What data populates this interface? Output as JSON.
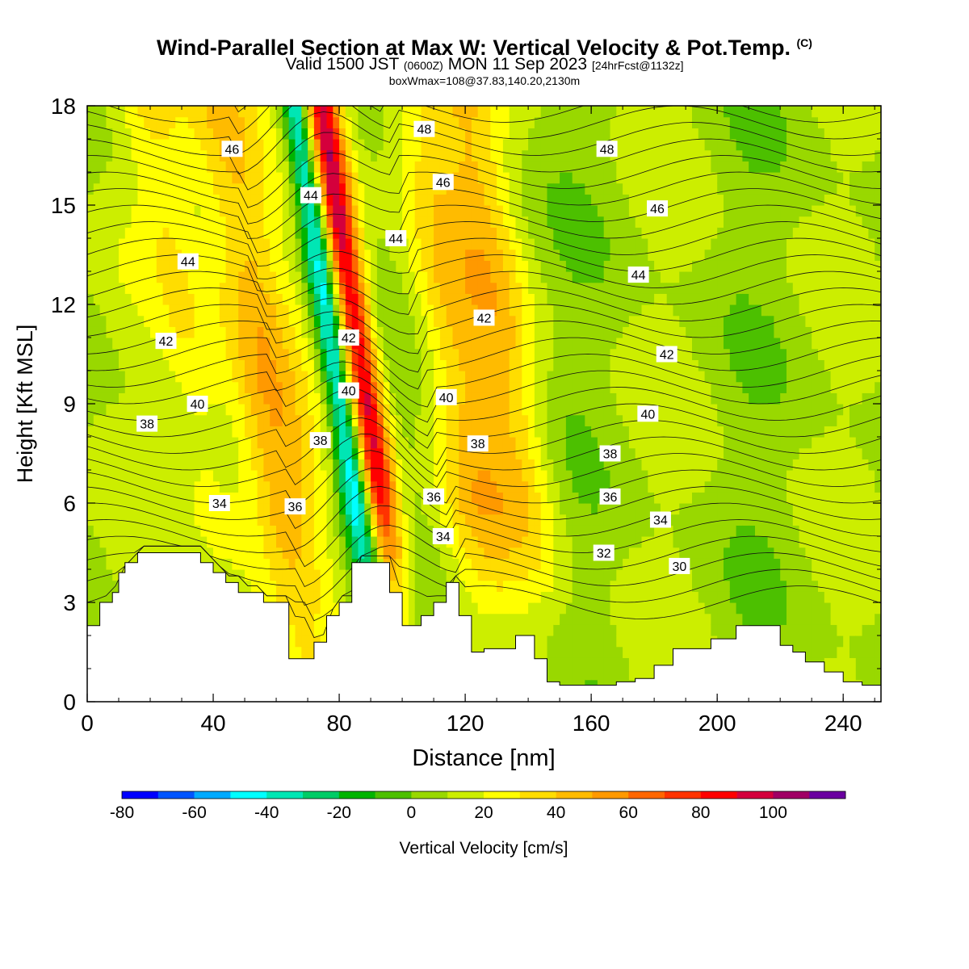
{
  "header": {
    "title": "Wind-Parallel Section at Max W: Vertical Velocity & Pot.Temp.",
    "title_tag": "(C)",
    "valid_prefix": "Valid 1500 JST",
    "valid_utc": "(0600Z)",
    "valid_date": "MON 11 Sep 2023",
    "forecast": "[24hrFcst@1132z]",
    "boxinfo": "boxWmax=108@37.83,140.20,2130m"
  },
  "chart_data": {
    "type": "heatmap",
    "xlabel": "Distance [nm]",
    "ylabel": "Height [Kft MSL]",
    "xlim": [
      0,
      252
    ],
    "ylim": [
      0,
      18
    ],
    "xticks": [
      0,
      40,
      80,
      120,
      160,
      200,
      240
    ],
    "yticks": [
      0,
      3,
      6,
      9,
      12,
      15,
      18
    ],
    "colorbar": {
      "label": "Vertical Velocity [cm/s]",
      "ticks": [
        -80,
        -60,
        -40,
        -20,
        0,
        20,
        40,
        60,
        80,
        100
      ],
      "bins": [
        -80,
        -70,
        -60,
        -50,
        -40,
        -30,
        -20,
        -10,
        0,
        10,
        20,
        30,
        40,
        50,
        60,
        70,
        80,
        90,
        100,
        110
      ],
      "colors": [
        "#0000ff",
        "#0055ff",
        "#00aaff",
        "#00ffff",
        "#00e6b4",
        "#00cc66",
        "#00b400",
        "#4cc000",
        "#99d800",
        "#ccee00",
        "#ffff00",
        "#ffdd00",
        "#ffbb00",
        "#ff9900",
        "#ff6600",
        "#ff3300",
        "#ff0000",
        "#d4003c",
        "#a00064",
        "#6a00a0"
      ]
    },
    "wind_bands": [
      {
        "x": 62,
        "w": 12,
        "w_cms": 40
      },
      {
        "x": 86,
        "w": 5,
        "w_cms": -70
      },
      {
        "x": 93,
        "w": 6,
        "w_cms": 90
      },
      {
        "x": 124,
        "w": 12,
        "w_cms": 30
      },
      {
        "x": 140,
        "w": 10,
        "w_cms": 25
      },
      {
        "x": 40,
        "w": 10,
        "w_cms": 20
      }
    ],
    "terrain": [
      [
        0,
        2.3
      ],
      [
        4,
        3.0
      ],
      [
        8,
        3.3
      ],
      [
        10,
        3.9
      ],
      [
        12,
        4.2
      ],
      [
        16,
        4.5
      ],
      [
        32,
        4.5
      ],
      [
        36,
        4.2
      ],
      [
        40,
        3.9
      ],
      [
        44,
        3.6
      ],
      [
        48,
        3.3
      ],
      [
        56,
        3.0
      ],
      [
        62,
        3.0
      ],
      [
        64,
        1.3
      ],
      [
        72,
        1.8
      ],
      [
        76,
        2.6
      ],
      [
        80,
        3.0
      ],
      [
        84,
        4.2
      ],
      [
        90,
        4.2
      ],
      [
        96,
        3.3
      ],
      [
        100,
        2.3
      ],
      [
        106,
        2.6
      ],
      [
        110,
        3.0
      ],
      [
        114,
        3.6
      ],
      [
        118,
        2.6
      ],
      [
        122,
        1.5
      ],
      [
        126,
        1.6
      ],
      [
        136,
        2.0
      ],
      [
        142,
        1.3
      ],
      [
        146,
        0.6
      ],
      [
        150,
        0.5
      ],
      [
        162,
        0.5
      ],
      [
        168,
        0.6
      ],
      [
        174,
        0.7
      ],
      [
        180,
        1.1
      ],
      [
        186,
        1.6
      ],
      [
        198,
        1.9
      ],
      [
        206,
        2.3
      ],
      [
        214,
        2.3
      ],
      [
        220,
        1.7
      ],
      [
        224,
        1.5
      ],
      [
        228,
        1.2
      ],
      [
        234,
        0.9
      ],
      [
        240,
        0.6
      ],
      [
        246,
        0.5
      ],
      [
        252,
        0.4
      ]
    ],
    "theta_contour_labels": [
      {
        "label": "46",
        "x": 46,
        "y": 16.7
      },
      {
        "label": "44",
        "x": 71,
        "y": 15.3
      },
      {
        "label": "48",
        "x": 107,
        "y": 17.3
      },
      {
        "label": "48",
        "x": 165,
        "y": 16.7
      },
      {
        "label": "46",
        "x": 113,
        "y": 15.7
      },
      {
        "label": "46",
        "x": 181,
        "y": 14.9
      },
      {
        "label": "44",
        "x": 98,
        "y": 14.0
      },
      {
        "label": "44",
        "x": 32,
        "y": 13.3
      },
      {
        "label": "44",
        "x": 175,
        "y": 12.9
      },
      {
        "label": "42",
        "x": 126,
        "y": 11.6
      },
      {
        "label": "42",
        "x": 83,
        "y": 11.0
      },
      {
        "label": "42",
        "x": 25,
        "y": 10.9
      },
      {
        "label": "42",
        "x": 184,
        "y": 10.5
      },
      {
        "label": "40",
        "x": 83,
        "y": 9.4
      },
      {
        "label": "40",
        "x": 114,
        "y": 9.2
      },
      {
        "label": "40",
        "x": 35,
        "y": 9.0
      },
      {
        "label": "40",
        "x": 178,
        "y": 8.7
      },
      {
        "label": "38",
        "x": 19,
        "y": 8.4
      },
      {
        "label": "38",
        "x": 74,
        "y": 7.9
      },
      {
        "label": "38",
        "x": 124,
        "y": 7.8
      },
      {
        "label": "38",
        "x": 166,
        "y": 7.5
      },
      {
        "label": "36",
        "x": 110,
        "y": 6.2
      },
      {
        "label": "36",
        "x": 166,
        "y": 6.2
      },
      {
        "label": "36",
        "x": 66,
        "y": 5.9
      },
      {
        "label": "34",
        "x": 42,
        "y": 6.0
      },
      {
        "label": "34",
        "x": 182,
        "y": 5.5
      },
      {
        "label": "34",
        "x": 113,
        "y": 5.0
      },
      {
        "label": "32",
        "x": 164,
        "y": 4.5
      },
      {
        "label": "30",
        "x": 188,
        "y": 4.1
      }
    ]
  }
}
